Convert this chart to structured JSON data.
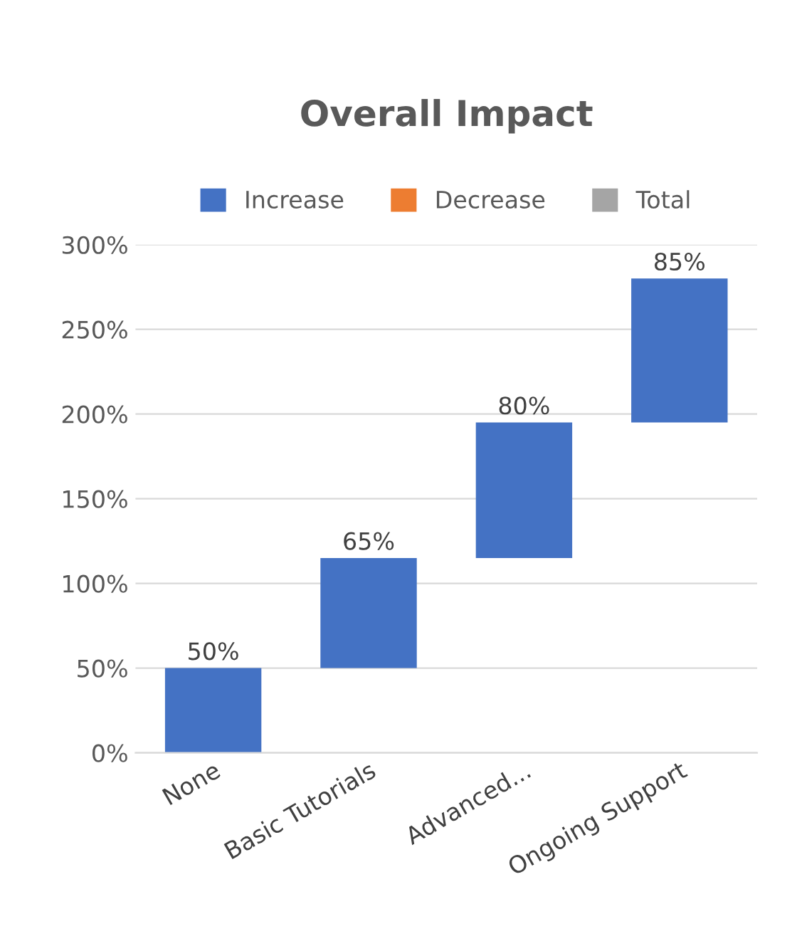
{
  "chart_data": {
    "type": "bar",
    "title": "Overall Impact",
    "categories": [
      "None",
      "Basic Tutorials",
      "Advanced...",
      "Ongoing Support"
    ],
    "series": [
      {
        "name": "Increase",
        "color": "#4472c4",
        "values": [
          50,
          65,
          80,
          85
        ],
        "base": [
          0,
          50,
          115,
          195
        ],
        "value_labels": [
          "50%",
          "65%",
          "80%",
          "85%"
        ]
      },
      {
        "name": "Decrease",
        "color": "#ed7d31",
        "values": [
          null,
          null,
          null,
          null
        ]
      },
      {
        "name": "Total",
        "color": "#a5a5a5",
        "values": [
          null,
          null,
          null,
          null
        ]
      }
    ],
    "ylim": [
      0,
      300
    ],
    "yticks": [
      {
        "value": 0,
        "label": "0%"
      },
      {
        "value": 50,
        "label": "50%"
      },
      {
        "value": 100,
        "label": "100%"
      },
      {
        "value": 150,
        "label": "150%"
      },
      {
        "value": 200,
        "label": "200%"
      },
      {
        "value": 250,
        "label": "250%"
      },
      {
        "value": 300,
        "label": "300%"
      }
    ],
    "grid": "y",
    "legend": "top"
  }
}
